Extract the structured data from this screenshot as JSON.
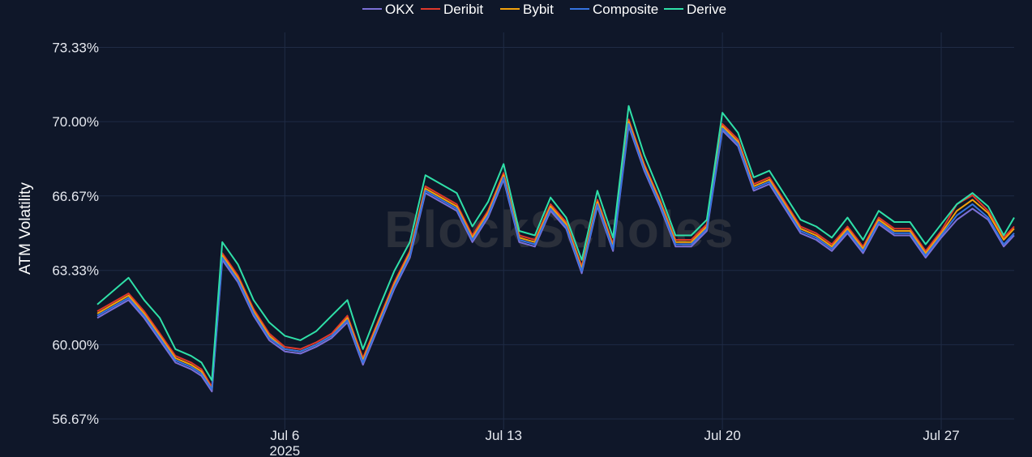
{
  "watermark": "BlockScholes",
  "colors": {
    "background": "#0f1729",
    "grid": "#1f2b45",
    "OKX": "#7b6fd6",
    "Deribit": "#e0382b",
    "Bybit": "#f2a20c",
    "Composite": "#3573e0",
    "Derive": "#2fe0a8"
  },
  "chart_data": {
    "type": "line",
    "title": "",
    "ylabel": "ATM Volatility",
    "xlabel": "",
    "x_start": "2025-06-30",
    "x_end": "2025-07-29T08:00",
    "x_ticks": [
      {
        "date": "2025-07-06",
        "label": "Jul 6",
        "sublabel": "2025"
      },
      {
        "date": "2025-07-13",
        "label": "Jul 13",
        "sublabel": ""
      },
      {
        "date": "2025-07-20",
        "label": "Jul 20",
        "sublabel": ""
      },
      {
        "date": "2025-07-27",
        "label": "Jul 27",
        "sublabel": ""
      }
    ],
    "y_ticks": [
      {
        "value": 56.67,
        "label": "56.67%"
      },
      {
        "value": 60.0,
        "label": "60.00%"
      },
      {
        "value": 63.33,
        "label": "63.33%"
      },
      {
        "value": 66.67,
        "label": "66.67%"
      },
      {
        "value": 70.0,
        "label": "70.00%"
      },
      {
        "value": 73.33,
        "label": "73.33%"
      }
    ],
    "ylim": [
      56.2,
      74.0
    ],
    "grid": true,
    "legend_position": "top-center",
    "x": [
      "2025-06-30T00:00",
      "2025-06-30T12:00",
      "2025-07-01T00:00",
      "2025-07-01T12:00",
      "2025-07-02T00:00",
      "2025-07-02T12:00",
      "2025-07-03T00:00",
      "2025-07-03T08:00",
      "2025-07-03T16:00",
      "2025-07-04T00:00",
      "2025-07-04T12:00",
      "2025-07-05T00:00",
      "2025-07-05T12:00",
      "2025-07-06T00:00",
      "2025-07-06T12:00",
      "2025-07-07T00:00",
      "2025-07-07T12:00",
      "2025-07-08T00:00",
      "2025-07-08T12:00",
      "2025-07-09T00:00",
      "2025-07-09T12:00",
      "2025-07-10T00:00",
      "2025-07-10T12:00",
      "2025-07-11T00:00",
      "2025-07-11T12:00",
      "2025-07-12T00:00",
      "2025-07-12T12:00",
      "2025-07-13T00:00",
      "2025-07-13T12:00",
      "2025-07-14T00:00",
      "2025-07-14T12:00",
      "2025-07-15T00:00",
      "2025-07-15T12:00",
      "2025-07-16T00:00",
      "2025-07-16T12:00",
      "2025-07-17T00:00",
      "2025-07-17T12:00",
      "2025-07-18T00:00",
      "2025-07-18T12:00",
      "2025-07-19T00:00",
      "2025-07-19T12:00",
      "2025-07-20T00:00",
      "2025-07-20T12:00",
      "2025-07-21T00:00",
      "2025-07-21T12:00",
      "2025-07-22T00:00",
      "2025-07-22T12:00",
      "2025-07-23T00:00",
      "2025-07-23T12:00",
      "2025-07-24T00:00",
      "2025-07-24T12:00",
      "2025-07-25T00:00",
      "2025-07-25T12:00",
      "2025-07-26T00:00",
      "2025-07-26T12:00",
      "2025-07-27T00:00",
      "2025-07-27T12:00",
      "2025-07-28T00:00",
      "2025-07-28T12:00",
      "2025-07-29T00:00",
      "2025-07-29T08:00"
    ],
    "series": [
      {
        "name": "OKX",
        "values": [
          61.2,
          61.6,
          62.0,
          61.2,
          60.2,
          59.2,
          58.9,
          58.6,
          57.9,
          63.8,
          62.8,
          61.3,
          60.2,
          59.7,
          59.6,
          59.9,
          60.3,
          61.0,
          59.1,
          60.8,
          62.5,
          63.9,
          66.8,
          66.4,
          66.0,
          64.6,
          65.7,
          67.4,
          64.6,
          64.4,
          66.0,
          65.2,
          63.2,
          66.2,
          64.2,
          69.8,
          67.8,
          66.2,
          64.4,
          64.4,
          65.1,
          69.6,
          68.9,
          66.9,
          67.2,
          66.1,
          65.0,
          64.7,
          64.2,
          65.0,
          64.1,
          65.4,
          64.9,
          64.9,
          63.9,
          64.8,
          65.6,
          66.1,
          65.6,
          64.4,
          64.9
        ]
      },
      {
        "name": "Deribit",
        "values": [
          61.5,
          61.9,
          62.3,
          61.5,
          60.5,
          59.5,
          59.2,
          58.9,
          58.1,
          64.1,
          63.1,
          61.6,
          60.5,
          59.9,
          59.8,
          60.1,
          60.5,
          61.3,
          59.4,
          61.1,
          62.8,
          64.2,
          67.1,
          66.7,
          66.3,
          64.9,
          66.0,
          67.7,
          64.9,
          64.7,
          66.3,
          65.5,
          63.5,
          66.5,
          64.5,
          70.1,
          68.1,
          66.5,
          64.7,
          64.7,
          65.4,
          69.9,
          69.2,
          67.2,
          67.5,
          66.4,
          65.3,
          65.0,
          64.5,
          65.3,
          64.4,
          65.7,
          65.2,
          65.2,
          64.2,
          65.1,
          66.3,
          66.7,
          66.0,
          64.8,
          65.3
        ]
      },
      {
        "name": "Bybit",
        "values": [
          61.4,
          61.8,
          62.2,
          61.4,
          60.4,
          59.4,
          59.1,
          58.8,
          58.0,
          64.0,
          63.0,
          61.5,
          60.4,
          59.8,
          59.7,
          60.0,
          60.4,
          61.2,
          59.3,
          61.0,
          62.7,
          64.1,
          67.0,
          66.6,
          66.2,
          64.8,
          65.9,
          67.6,
          64.8,
          64.6,
          66.2,
          65.4,
          63.4,
          66.4,
          64.4,
          70.0,
          68.0,
          66.4,
          64.6,
          64.6,
          65.3,
          69.8,
          69.1,
          67.1,
          67.4,
          66.3,
          65.2,
          64.9,
          64.4,
          65.2,
          64.3,
          65.6,
          65.1,
          65.1,
          64.1,
          65.0,
          66.0,
          66.5,
          65.9,
          64.7,
          65.2
        ]
      },
      {
        "name": "Composite",
        "values": [
          61.3,
          61.7,
          62.1,
          61.3,
          60.3,
          59.3,
          59.0,
          58.7,
          58.0,
          63.9,
          62.9,
          61.4,
          60.3,
          59.8,
          59.7,
          60.0,
          60.4,
          61.1,
          59.2,
          60.9,
          62.6,
          64.0,
          66.9,
          66.5,
          66.1,
          64.7,
          65.8,
          67.5,
          64.7,
          64.5,
          66.1,
          65.3,
          63.3,
          66.3,
          64.3,
          69.9,
          67.9,
          66.3,
          64.5,
          64.5,
          65.2,
          69.7,
          69.0,
          67.0,
          67.3,
          66.2,
          65.1,
          64.8,
          64.3,
          65.1,
          64.2,
          65.5,
          65.0,
          65.0,
          64.0,
          64.9,
          65.8,
          66.3,
          65.7,
          64.5,
          65.0
        ]
      },
      {
        "name": "Derive",
        "values": [
          61.8,
          62.4,
          63.0,
          62.0,
          61.2,
          59.8,
          59.5,
          59.2,
          58.4,
          64.6,
          63.6,
          62.0,
          61.0,
          60.4,
          60.2,
          60.6,
          61.3,
          62.0,
          59.8,
          61.6,
          63.3,
          64.6,
          67.6,
          67.2,
          66.8,
          65.3,
          66.4,
          68.1,
          65.1,
          64.9,
          66.6,
          65.7,
          63.8,
          66.9,
          64.8,
          70.7,
          68.5,
          66.8,
          64.9,
          64.9,
          65.6,
          70.4,
          69.5,
          67.5,
          67.8,
          66.7,
          65.6,
          65.3,
          64.8,
          65.7,
          64.7,
          66.0,
          65.5,
          65.5,
          64.5,
          65.4,
          66.3,
          66.8,
          66.2,
          64.9,
          65.7
        ]
      }
    ]
  }
}
